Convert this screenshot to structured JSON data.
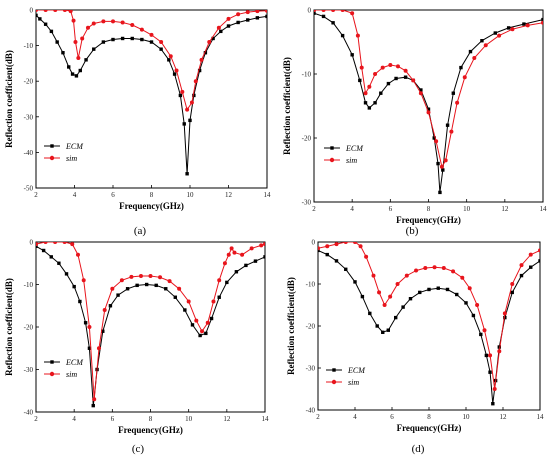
{
  "colors": {
    "ecm": "#000000",
    "sim": "#e8141c",
    "frame": "#000000"
  },
  "chart_data": [
    {
      "type": "line",
      "panel_label": "(a)",
      "xlabel": "Frequency(GHz)",
      "ylabel": "Reflection coefficient(dB)",
      "xlim": [
        2,
        14
      ],
      "ylim": [
        -50,
        0
      ],
      "xticks": [
        2,
        4,
        6,
        8,
        10,
        12,
        14
      ],
      "yticks": [
        0,
        -10,
        -20,
        -30,
        -40,
        -50
      ],
      "legend_position": "lower-left",
      "series": [
        {
          "name": "ECM",
          "color": "#000000",
          "marker": "square",
          "points": [
            [
              2,
              -1.5
            ],
            [
              2.2,
              -2.5
            ],
            [
              2.5,
              -4
            ],
            [
              2.8,
              -6
            ],
            [
              3.1,
              -9
            ],
            [
              3.4,
              -12
            ],
            [
              3.7,
              -16
            ],
            [
              3.9,
              -18
            ],
            [
              4.1,
              -18.5
            ],
            [
              4.3,
              -17
            ],
            [
              4.6,
              -14
            ],
            [
              5,
              -11
            ],
            [
              5.5,
              -9
            ],
            [
              6,
              -8.3
            ],
            [
              6.5,
              -8
            ],
            [
              7,
              -8
            ],
            [
              7.5,
              -8.3
            ],
            [
              8,
              -9
            ],
            [
              8.5,
              -11
            ],
            [
              8.9,
              -14
            ],
            [
              9.2,
              -18
            ],
            [
              9.5,
              -24
            ],
            [
              9.7,
              -32
            ],
            [
              9.85,
              -46
            ],
            [
              10,
              -31
            ],
            [
              10.2,
              -24
            ],
            [
              10.5,
              -17
            ],
            [
              10.8,
              -12
            ],
            [
              11.2,
              -8
            ],
            [
              11.6,
              -6
            ],
            [
              12,
              -4.5
            ],
            [
              12.5,
              -3.5
            ],
            [
              13,
              -2.8
            ],
            [
              13.5,
              -2.2
            ],
            [
              14,
              -1.8
            ]
          ]
        },
        {
          "name": "sim",
          "color": "#e8141c",
          "marker": "circle",
          "points": [
            [
              2,
              0
            ],
            [
              2.5,
              0
            ],
            [
              3,
              0
            ],
            [
              3.5,
              0
            ],
            [
              3.8,
              -0.3
            ],
            [
              3.95,
              -3
            ],
            [
              4.05,
              -9
            ],
            [
              4.2,
              -13.5
            ],
            [
              4.4,
              -8
            ],
            [
              4.7,
              -5
            ],
            [
              5,
              -3.8
            ],
            [
              5.5,
              -3.2
            ],
            [
              6,
              -3.2
            ],
            [
              6.5,
              -3.5
            ],
            [
              7,
              -4.2
            ],
            [
              7.5,
              -5.5
            ],
            [
              8,
              -7
            ],
            [
              8.5,
              -9
            ],
            [
              9,
              -13
            ],
            [
              9.3,
              -17
            ],
            [
              9.6,
              -23
            ],
            [
              9.85,
              -28
            ],
            [
              10.1,
              -26
            ],
            [
              10.3,
              -20
            ],
            [
              10.6,
              -14
            ],
            [
              11,
              -9
            ],
            [
              11.5,
              -5
            ],
            [
              12,
              -2.5
            ],
            [
              12.5,
              -1.2
            ],
            [
              13,
              -0.6
            ],
            [
              13.5,
              -0.3
            ],
            [
              14,
              -0.2
            ]
          ]
        }
      ]
    },
    {
      "type": "line",
      "panel_label": "(b)",
      "xlabel": "Frequency(GHz)",
      "ylabel": "Reflection coefficient(dB)",
      "xlim": [
        2,
        14
      ],
      "ylim": [
        -30,
        0
      ],
      "xticks": [
        2,
        4,
        6,
        8,
        10,
        12,
        14
      ],
      "yticks": [
        0,
        -10,
        -20,
        -30
      ],
      "legend_position": "lower-left",
      "series": [
        {
          "name": "ECM",
          "color": "#000000",
          "marker": "square",
          "points": [
            [
              2,
              -0.5
            ],
            [
              2.5,
              -1
            ],
            [
              3,
              -2
            ],
            [
              3.5,
              -4
            ],
            [
              4,
              -7
            ],
            [
              4.4,
              -11
            ],
            [
              4.7,
              -14.5
            ],
            [
              4.9,
              -15.3
            ],
            [
              5.2,
              -14.5
            ],
            [
              5.5,
              -13
            ],
            [
              5.9,
              -11.5
            ],
            [
              6.3,
              -10.7
            ],
            [
              6.8,
              -10.5
            ],
            [
              7.2,
              -11
            ],
            [
              7.6,
              -12.5
            ],
            [
              8,
              -15.5
            ],
            [
              8.3,
              -20
            ],
            [
              8.5,
              -24
            ],
            [
              8.6,
              -28.5
            ],
            [
              8.75,
              -25
            ],
            [
              9,
              -18
            ],
            [
              9.3,
              -13
            ],
            [
              9.7,
              -9
            ],
            [
              10.2,
              -6.5
            ],
            [
              10.8,
              -4.8
            ],
            [
              11.5,
              -3.6
            ],
            [
              12.2,
              -2.8
            ],
            [
              13,
              -2.2
            ],
            [
              14,
              -1.5
            ]
          ]
        },
        {
          "name": "sim",
          "color": "#e8141c",
          "marker": "circle",
          "points": [
            [
              2,
              0
            ],
            [
              2.5,
              0
            ],
            [
              3,
              0
            ],
            [
              3.5,
              0
            ],
            [
              4,
              -0.5
            ],
            [
              4.3,
              -4
            ],
            [
              4.5,
              -9
            ],
            [
              4.7,
              -13
            ],
            [
              4.9,
              -12
            ],
            [
              5.2,
              -10
            ],
            [
              5.6,
              -9
            ],
            [
              6,
              -8.6
            ],
            [
              6.4,
              -8.8
            ],
            [
              6.8,
              -9.5
            ],
            [
              7.2,
              -11
            ],
            [
              7.6,
              -13
            ],
            [
              8,
              -16
            ],
            [
              8.4,
              -20.5
            ],
            [
              8.7,
              -24.5
            ],
            [
              8.9,
              -23.5
            ],
            [
              9.2,
              -19
            ],
            [
              9.5,
              -14.5
            ],
            [
              9.9,
              -10.5
            ],
            [
              10.4,
              -7.5
            ],
            [
              11,
              -5.5
            ],
            [
              11.7,
              -4
            ],
            [
              12.4,
              -3
            ],
            [
              13.2,
              -2.4
            ],
            [
              14,
              -2
            ]
          ]
        }
      ]
    },
    {
      "type": "line",
      "panel_label": "(c)",
      "xlabel": "Frequency(GHz)",
      "ylabel": "Reflection coefficient(dB)",
      "xlim": [
        2,
        14
      ],
      "ylim": [
        -40,
        0
      ],
      "xticks": [
        2,
        4,
        6,
        8,
        10,
        12,
        14
      ],
      "yticks": [
        0,
        -10,
        -20,
        -30,
        -40
      ],
      "legend_position": "center-left",
      "series": [
        {
          "name": "ECM",
          "color": "#000000",
          "marker": "square",
          "points": [
            [
              2,
              -1
            ],
            [
              2.4,
              -2
            ],
            [
              2.8,
              -3.5
            ],
            [
              3.2,
              -5
            ],
            [
              3.6,
              -7.5
            ],
            [
              4,
              -10.5
            ],
            [
              4.3,
              -14
            ],
            [
              4.6,
              -19
            ],
            [
              4.8,
              -25
            ],
            [
              5,
              -38.5
            ],
            [
              5.2,
              -30
            ],
            [
              5.5,
              -21
            ],
            [
              5.9,
              -15
            ],
            [
              6.3,
              -12.5
            ],
            [
              6.8,
              -11
            ],
            [
              7.3,
              -10.2
            ],
            [
              7.8,
              -10
            ],
            [
              8.3,
              -10.2
            ],
            [
              8.8,
              -11
            ],
            [
              9.3,
              -13
            ],
            [
              9.8,
              -16
            ],
            [
              10.2,
              -19.5
            ],
            [
              10.6,
              -22
            ],
            [
              10.9,
              -21.5
            ],
            [
              11.2,
              -18
            ],
            [
              11.6,
              -13
            ],
            [
              12,
              -9.5
            ],
            [
              12.5,
              -7
            ],
            [
              13,
              -5.5
            ],
            [
              13.5,
              -4.5
            ],
            [
              14,
              -3.5
            ]
          ]
        },
        {
          "name": "sim",
          "color": "#e8141c",
          "marker": "circle",
          "points": [
            [
              2,
              -0.5
            ],
            [
              2.5,
              0
            ],
            [
              3,
              0
            ],
            [
              3.5,
              0
            ],
            [
              3.9,
              -0.5
            ],
            [
              4.2,
              -3
            ],
            [
              4.5,
              -9
            ],
            [
              4.8,
              -20
            ],
            [
              5.05,
              -37
            ],
            [
              5.3,
              -25
            ],
            [
              5.6,
              -16
            ],
            [
              6,
              -11
            ],
            [
              6.5,
              -9
            ],
            [
              7,
              -8.2
            ],
            [
              7.5,
              -8
            ],
            [
              8,
              -8
            ],
            [
              8.5,
              -8.3
            ],
            [
              9,
              -9.2
            ],
            [
              9.5,
              -11
            ],
            [
              10,
              -14
            ],
            [
              10.4,
              -18.5
            ],
            [
              10.7,
              -21
            ],
            [
              11,
              -19
            ],
            [
              11.3,
              -14
            ],
            [
              11.6,
              -9
            ],
            [
              11.9,
              -5
            ],
            [
              12.1,
              -3
            ],
            [
              12.25,
              -1.5
            ],
            [
              12.4,
              -2.5
            ],
            [
              12.8,
              -3
            ],
            [
              13.3,
              -1.5
            ],
            [
              13.8,
              -0.8
            ],
            [
              14,
              -0.5
            ]
          ]
        }
      ]
    },
    {
      "type": "line",
      "panel_label": "(d)",
      "xlabel": "Frequency(GHz)",
      "ylabel": "Reflection coefficient(dB)",
      "xlim": [
        2,
        14
      ],
      "ylim": [
        -40,
        0
      ],
      "xticks": [
        2,
        4,
        6,
        8,
        10,
        12,
        14
      ],
      "yticks": [
        0,
        -10,
        -20,
        -30,
        -40
      ],
      "legend_position": "lower-left",
      "series": [
        {
          "name": "ECM",
          "color": "#000000",
          "marker": "square",
          "points": [
            [
              2,
              -2
            ],
            [
              2.5,
              -3
            ],
            [
              3,
              -4.5
            ],
            [
              3.5,
              -6.5
            ],
            [
              4,
              -9.5
            ],
            [
              4.4,
              -13
            ],
            [
              4.8,
              -17
            ],
            [
              5.2,
              -20
            ],
            [
              5.5,
              -21.5
            ],
            [
              5.8,
              -21
            ],
            [
              6.2,
              -18
            ],
            [
              6.6,
              -15.5
            ],
            [
              7,
              -13.5
            ],
            [
              7.5,
              -12
            ],
            [
              8,
              -11.3
            ],
            [
              8.5,
              -11
            ],
            [
              9,
              -11.3
            ],
            [
              9.5,
              -12.5
            ],
            [
              10,
              -14.5
            ],
            [
              10.4,
              -17.5
            ],
            [
              10.8,
              -22
            ],
            [
              11.1,
              -27
            ],
            [
              11.3,
              -31
            ],
            [
              11.45,
              -38.5
            ],
            [
              11.6,
              -33
            ],
            [
              11.8,
              -25
            ],
            [
              12.1,
              -18
            ],
            [
              12.5,
              -12
            ],
            [
              13,
              -8
            ],
            [
              13.5,
              -6
            ],
            [
              14,
              -4.5
            ]
          ]
        },
        {
          "name": "sim",
          "color": "#e8141c",
          "marker": "circle",
          "points": [
            [
              2,
              -1.5
            ],
            [
              2.5,
              -1
            ],
            [
              3,
              -0.5
            ],
            [
              3.5,
              0
            ],
            [
              4,
              0
            ],
            [
              4.3,
              -1
            ],
            [
              4.6,
              -3.5
            ],
            [
              5,
              -8
            ],
            [
              5.3,
              -12
            ],
            [
              5.6,
              -15
            ],
            [
              5.9,
              -13
            ],
            [
              6.3,
              -10
            ],
            [
              6.8,
              -8
            ],
            [
              7.3,
              -6.8
            ],
            [
              7.8,
              -6.2
            ],
            [
              8.3,
              -6
            ],
            [
              8.8,
              -6.2
            ],
            [
              9.3,
              -7
            ],
            [
              9.8,
              -8.5
            ],
            [
              10.2,
              -11
            ],
            [
              10.6,
              -15
            ],
            [
              11,
              -21
            ],
            [
              11.3,
              -27
            ],
            [
              11.55,
              -35
            ],
            [
              11.8,
              -26
            ],
            [
              12.1,
              -17
            ],
            [
              12.5,
              -10
            ],
            [
              13,
              -5.5
            ],
            [
              13.5,
              -3
            ],
            [
              14,
              -2
            ]
          ]
        }
      ]
    }
  ]
}
